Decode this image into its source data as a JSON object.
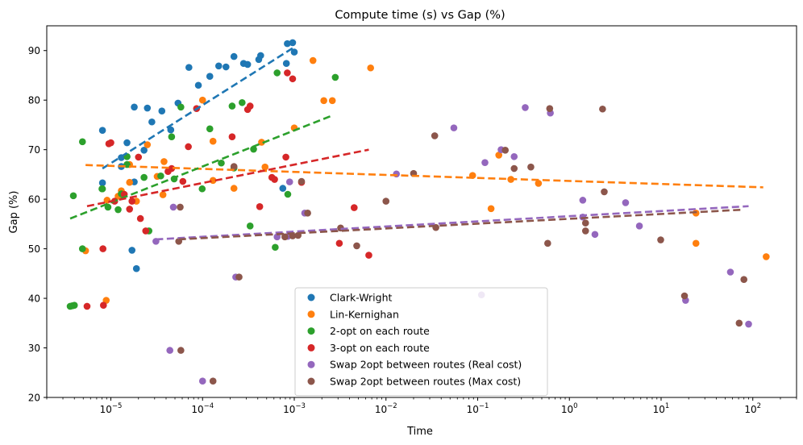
{
  "chart_data": {
    "type": "scatter",
    "title": "Compute time (s) vs Gap (%)",
    "xlabel": "Time",
    "ylabel": "Gap (%)",
    "xscale": "log",
    "xlim": [
      2e-06,
      300
    ],
    "ylim": [
      20,
      95
    ],
    "x_ticks": [
      {
        "value": 1e-05,
        "base": "10",
        "exp": "−5"
      },
      {
        "value": 0.0001,
        "base": "10",
        "exp": "−4"
      },
      {
        "value": 0.001,
        "base": "10",
        "exp": "−3"
      },
      {
        "value": 0.01,
        "base": "10",
        "exp": "−2"
      },
      {
        "value": 0.1,
        "base": "10",
        "exp": "−1"
      },
      {
        "value": 1,
        "base": "10",
        "exp": "0"
      },
      {
        "value": 10,
        "base": "10",
        "exp": "1"
      },
      {
        "value": 100,
        "base": "10",
        "exp": "2"
      }
    ],
    "y_ticks": [
      "20",
      "30",
      "40",
      "50",
      "60",
      "70",
      "80",
      "90"
    ],
    "grid": false,
    "legend_position": "lower-center",
    "series": [
      {
        "name": "Clark-Wright",
        "color": "#1f77b4",
        "points": [
          [
            8.1e-06,
            73.9
          ],
          [
            8.1e-06,
            63.3
          ],
          [
            1.3e-05,
            66.6
          ],
          [
            1.3e-05,
            68.4
          ],
          [
            1.5e-05,
            71.4
          ],
          [
            1.5e-05,
            68.6
          ],
          [
            1.7e-05,
            49.7
          ],
          [
            1.8e-05,
            78.6
          ],
          [
            1.9e-05,
            46.0
          ],
          [
            1.8e-05,
            63.5
          ],
          [
            2.3e-05,
            69.9
          ],
          [
            2.5e-05,
            78.4
          ],
          [
            2.8e-05,
            75.6
          ],
          [
            3.6e-05,
            77.8
          ],
          [
            4.5e-05,
            74.0
          ],
          [
            5.4e-05,
            79.4
          ],
          [
            7.1e-05,
            86.6
          ],
          [
            9e-05,
            83.0
          ],
          [
            0.00012,
            84.8
          ],
          [
            0.00015,
            86.9
          ],
          [
            0.00018,
            86.7
          ],
          [
            0.00022,
            88.8
          ],
          [
            0.00028,
            87.4
          ],
          [
            0.00031,
            87.2
          ],
          [
            0.00041,
            88.2
          ],
          [
            0.00043,
            89.0
          ],
          [
            0.00075,
            62.2
          ],
          [
            0.00082,
            87.4
          ],
          [
            0.00084,
            91.4
          ],
          [
            0.00096,
            91.6
          ],
          [
            0.001,
            89.7
          ]
        ],
        "trend": [
          [
            8.1e-06,
            66.2
          ],
          [
            0.001,
            90.7
          ]
        ]
      },
      {
        "name": "Lin-Kernighan",
        "color": "#ff7f0e",
        "points": [
          [
            5.3e-06,
            49.6
          ],
          [
            8.9e-06,
            39.6
          ],
          [
            9.1e-06,
            59.8
          ],
          [
            1.2e-05,
            60.6
          ],
          [
            1.3e-05,
            61.7
          ],
          [
            1.6e-05,
            67.0
          ],
          [
            1.6e-05,
            63.4
          ],
          [
            1.9e-05,
            59.6
          ],
          [
            2.5e-05,
            71.0
          ],
          [
            3.2e-05,
            64.6
          ],
          [
            3.7e-05,
            60.9
          ],
          [
            3.8e-05,
            67.6
          ],
          [
            0.0001,
            80.0
          ],
          [
            0.00013,
            71.7
          ],
          [
            0.00013,
            63.8
          ],
          [
            0.00022,
            62.2
          ],
          [
            0.00044,
            71.5
          ],
          [
            0.00048,
            66.5
          ],
          [
            0.001,
            74.4
          ],
          [
            0.0016,
            88.0
          ],
          [
            0.0021,
            79.9
          ],
          [
            0.0026,
            79.9
          ],
          [
            0.0068,
            86.5
          ],
          [
            0.088,
            64.8
          ],
          [
            0.14,
            58.1
          ],
          [
            0.17,
            68.9
          ],
          [
            0.23,
            64.0
          ],
          [
            0.46,
            63.2
          ],
          [
            24,
            57.2
          ],
          [
            24,
            51.1
          ],
          [
            140,
            48.4
          ]
        ],
        "trend": [
          [
            5.3e-06,
            66.9
          ],
          [
            130,
            62.4
          ]
        ]
      },
      {
        "name": "2-opt on each route",
        "color": "#2ca02c",
        "points": [
          [
            3.6e-06,
            38.4
          ],
          [
            3.8e-06,
            38.5
          ],
          [
            4e-06,
            38.6
          ],
          [
            3.9e-06,
            60.7
          ],
          [
            4.9e-06,
            71.6
          ],
          [
            4.9e-06,
            50.0
          ],
          [
            8e-06,
            62.1
          ],
          [
            8.1e-06,
            62.1
          ],
          [
            9.3e-06,
            58.4
          ],
          [
            1.2e-05,
            57.9
          ],
          [
            1.3e-05,
            61.1
          ],
          [
            1.5e-05,
            67.0
          ],
          [
            1.5e-05,
            68.6
          ],
          [
            2.3e-05,
            64.4
          ],
          [
            2.6e-05,
            53.6
          ],
          [
            3.5e-05,
            64.7
          ],
          [
            4.6e-05,
            72.6
          ],
          [
            4.9e-05,
            64.1
          ],
          [
            5.8e-05,
            78.6
          ],
          [
            9.9e-05,
            62.1
          ],
          [
            0.00012,
            74.2
          ],
          [
            0.00016,
            67.3
          ],
          [
            0.00021,
            78.8
          ],
          [
            0.00022,
            66.3
          ],
          [
            0.00027,
            79.5
          ],
          [
            0.00033,
            54.6
          ],
          [
            0.00036,
            70.1
          ],
          [
            0.00062,
            50.3
          ],
          [
            0.00065,
            85.5
          ],
          [
            0.00085,
            61.0
          ],
          [
            0.0028,
            84.6
          ]
        ],
        "trend": [
          [
            3.6e-06,
            56.1
          ],
          [
            0.0026,
            76.9
          ]
        ]
      },
      {
        "name": "3-opt on each route",
        "color": "#d62728",
        "points": [
          [
            5.5e-06,
            38.4
          ],
          [
            8.2e-06,
            50.0
          ],
          [
            8.3e-06,
            38.6
          ],
          [
            9.5e-06,
            71.2
          ],
          [
            1e-05,
            71.4
          ],
          [
            1.1e-05,
            59.6
          ],
          [
            1.4e-05,
            61.0
          ],
          [
            1.6e-05,
            58.0
          ],
          [
            1.7e-05,
            59.6
          ],
          [
            2e-05,
            68.5
          ],
          [
            2.1e-05,
            56.1
          ],
          [
            2.4e-05,
            53.6
          ],
          [
            4.2e-05,
            65.6
          ],
          [
            4.6e-05,
            66.2
          ],
          [
            6.1e-05,
            63.6
          ],
          [
            7e-05,
            70.6
          ],
          [
            8.6e-05,
            78.3
          ],
          [
            0.00021,
            72.6
          ],
          [
            0.00031,
            78.1
          ],
          [
            0.00033,
            78.8
          ],
          [
            0.00042,
            58.5
          ],
          [
            0.00057,
            64.4
          ],
          [
            0.00061,
            64.0
          ],
          [
            0.00081,
            68.5
          ],
          [
            0.00084,
            85.5
          ],
          [
            0.00096,
            84.3
          ],
          [
            0.0012,
            63.4
          ],
          [
            0.0031,
            51.1
          ],
          [
            0.0045,
            58.3
          ],
          [
            0.0065,
            48.7
          ]
        ],
        "trend": [
          [
            5.5e-06,
            58.6
          ],
          [
            0.0065,
            70.0
          ]
        ]
      },
      {
        "name": "Swap 2opt between routes (Real cost)",
        "color": "#9467bd",
        "points": [
          [
            3.1e-05,
            51.5
          ],
          [
            4.4e-05,
            29.5
          ],
          [
            4.8e-05,
            58.4
          ],
          [
            0.0001,
            23.3
          ],
          [
            0.00023,
            44.3
          ],
          [
            0.00065,
            52.4
          ],
          [
            0.00085,
            52.5
          ],
          [
            0.00089,
            63.5
          ],
          [
            0.0013,
            57.2
          ],
          [
            0.013,
            65.1
          ],
          [
            0.055,
            74.4
          ],
          [
            0.11,
            40.7
          ],
          [
            0.12,
            67.4
          ],
          [
            0.18,
            70.0
          ],
          [
            0.25,
            68.6
          ],
          [
            0.33,
            78.5
          ],
          [
            0.62,
            77.4
          ],
          [
            1.4,
            59.8
          ],
          [
            1.4,
            56.4
          ],
          [
            1.9,
            52.9
          ],
          [
            4.1,
            59.3
          ],
          [
            5.8,
            54.6
          ],
          [
            18.5,
            39.6
          ],
          [
            57,
            45.3
          ],
          [
            90,
            34.8
          ]
        ],
        "trend": [
          [
            3.1e-05,
            51.9
          ],
          [
            90,
            58.6
          ]
        ]
      },
      {
        "name": "Swap 2opt between routes (Max cost)",
        "color": "#8c564b",
        "points": [
          [
            5.5e-05,
            51.5
          ],
          [
            5.7e-05,
            58.4
          ],
          [
            5.8e-05,
            29.5
          ],
          [
            0.00013,
            23.3
          ],
          [
            0.00022,
            66.6
          ],
          [
            0.00025,
            44.3
          ],
          [
            0.00079,
            52.4
          ],
          [
            0.00096,
            52.6
          ],
          [
            0.0011,
            52.7
          ],
          [
            0.0012,
            63.6
          ],
          [
            0.0014,
            57.2
          ],
          [
            0.0032,
            54.2
          ],
          [
            0.0048,
            50.6
          ],
          [
            0.01,
            59.6
          ],
          [
            0.02,
            65.2
          ],
          [
            0.034,
            72.8
          ],
          [
            0.035,
            54.3
          ],
          [
            0.2,
            69.9
          ],
          [
            0.25,
            66.2
          ],
          [
            0.38,
            66.5
          ],
          [
            0.58,
            51.1
          ],
          [
            0.61,
            78.3
          ],
          [
            1.5,
            53.6
          ],
          [
            1.5,
            55.2
          ],
          [
            2.3,
            78.2
          ],
          [
            2.4,
            61.5
          ],
          [
            9.9,
            51.8
          ],
          [
            18,
            40.5
          ],
          [
            71,
            35.0
          ],
          [
            80,
            43.8
          ]
        ],
        "trend": [
          [
            5.5e-05,
            51.9
          ],
          [
            80,
            57.9
          ]
        ]
      }
    ]
  }
}
